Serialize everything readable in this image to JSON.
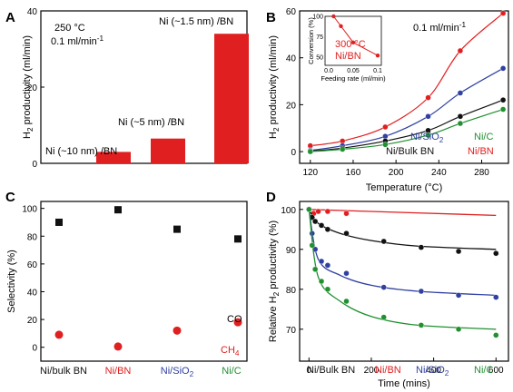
{
  "colors": {
    "red": "#e02020",
    "black": "#111111",
    "blue": "#3040a0",
    "green": "#209030"
  },
  "chart_data": [
    {
      "panel": "A",
      "type": "bar",
      "categories": [
        "Ni (~10 nm) /BN",
        "Ni (~5 nm) /BN",
        "Ni (~1.5 nm) /BN"
      ],
      "values": [
        3,
        6.5,
        34
      ],
      "ylim": [
        0,
        40
      ],
      "yticks": [
        "0",
        "20",
        "40"
      ],
      "ylabel": "H2 productivity (ml/min)",
      "annotations": [
        "250 °C",
        "0.1 ml/min-1"
      ]
    },
    {
      "panel": "B",
      "type": "line",
      "x": [
        120,
        150,
        190,
        230,
        260,
        300
      ],
      "series": [
        {
          "name": "Ni/BN",
          "color": "red",
          "values": [
            2.5,
            4.5,
            10.5,
            23,
            43,
            59
          ]
        },
        {
          "name": "Ni/SiO2",
          "color": "blue",
          "values": [
            0.5,
            2.5,
            6.5,
            15,
            25,
            35.5
          ]
        },
        {
          "name": "Ni/Bulk BN",
          "color": "black",
          "values": [
            0.2,
            1.5,
            4.5,
            9,
            15,
            22
          ]
        },
        {
          "name": "Ni/C",
          "color": "green",
          "values": [
            0,
            1,
            3,
            7,
            12,
            18
          ]
        }
      ],
      "xlim": [
        110,
        305
      ],
      "ylim": [
        -5,
        60
      ],
      "xticks": [
        "120",
        "160",
        "200",
        "240",
        "280"
      ],
      "yticks": [
        "0",
        "20",
        "40",
        "60"
      ],
      "xlabel": "Temperature (°C)",
      "ylabel": "H2 productivity (ml/min)",
      "annotation": "0.1 ml/min-1",
      "inset": {
        "type": "line",
        "x": [
          0.01,
          0.025,
          0.05,
          0.1
        ],
        "values": [
          100,
          88,
          68,
          52
        ],
        "xlim": [
          0,
          0.1
        ],
        "ylim": [
          40,
          100
        ],
        "xticks": [
          "0.0",
          "0.05",
          "0.1"
        ],
        "yticks": [
          "50",
          "75",
          "100"
        ],
        "xlabel": "Feeding rate (ml/min)",
        "ylabel": "Conversion (%)",
        "label_temp": "300 °C",
        "label_cat": "Ni/BN"
      }
    },
    {
      "panel": "C",
      "type": "scatter",
      "categories": [
        "Ni/bulk BN",
        "Ni/BN",
        "Ni/SiO2",
        "Ni/C"
      ],
      "category_colors": [
        "black",
        "red",
        "blue",
        "green"
      ],
      "series": [
        {
          "name": "CO",
          "marker": "square",
          "color": "black",
          "values": [
            90,
            99,
            85,
            78
          ]
        },
        {
          "name": "CH4",
          "marker": "circle",
          "color": "red",
          "values": [
            9,
            0.5,
            12,
            18
          ]
        }
      ],
      "ylim": [
        -10,
        105
      ],
      "yticks": [
        "0",
        "20",
        "40",
        "60",
        "80",
        "100"
      ],
      "ylabel": "Selectivity (%)"
    },
    {
      "panel": "D",
      "type": "scatter",
      "series": [
        {
          "name": "Ni/BN",
          "color": "red",
          "x": [
            0,
            15,
            30,
            60,
            120
          ],
          "values": [
            100,
            99,
            99.5,
            99.5,
            99
          ],
          "fit": [
            [
              0,
              100
            ],
            [
              600,
              98.5
            ]
          ]
        },
        {
          "name": "Ni/Bulk BN",
          "color": "black",
          "x": [
            0,
            10,
            20,
            40,
            60,
            120,
            240,
            360,
            480,
            600
          ],
          "values": [
            100,
            98,
            97,
            96,
            95,
            94,
            92,
            90.5,
            89.5,
            89
          ],
          "fit": [
            [
              0,
              100
            ],
            [
              30,
              96.5
            ],
            [
              100,
              94
            ],
            [
              200,
              92.2
            ],
            [
              350,
              90.8
            ],
            [
              600,
              90
            ]
          ]
        },
        {
          "name": "Ni/SiO2",
          "color": "blue",
          "x": [
            0,
            10,
            20,
            40,
            60,
            120,
            240,
            360,
            480,
            600
          ],
          "values": [
            100,
            94,
            90,
            87,
            86,
            84,
            80.5,
            79.5,
            78.5,
            78
          ],
          "fit": [
            [
              0,
              100
            ],
            [
              30,
              87.5
            ],
            [
              100,
              83.5
            ],
            [
              200,
              81
            ],
            [
              350,
              79.5
            ],
            [
              600,
              78.5
            ]
          ]
        },
        {
          "name": "Ni/C",
          "color": "green",
          "x": [
            0,
            10,
            20,
            40,
            60,
            120,
            240,
            360,
            480,
            600
          ],
          "values": [
            100,
            91,
            85,
            82,
            80,
            77,
            73,
            71,
            70,
            68.5
          ],
          "fit": [
            [
              0,
              100
            ],
            [
              30,
              83
            ],
            [
              100,
              77
            ],
            [
              200,
              73.2
            ],
            [
              350,
              71
            ],
            [
              600,
              70
            ]
          ]
        }
      ],
      "xlim": [
        -30,
        640
      ],
      "ylim": [
        62,
        102
      ],
      "xticks": [
        "0",
        "200",
        "400",
        "600"
      ],
      "yticks": [
        "70",
        "80",
        "90",
        "100"
      ],
      "xlabel": "Time (mins)",
      "ylabel": "Relative H2 productivity (%)",
      "legend": [
        "Ni/Bulk BN",
        "Ni/BN",
        "Ni/SiO2",
        "Ni/C"
      ]
    }
  ]
}
